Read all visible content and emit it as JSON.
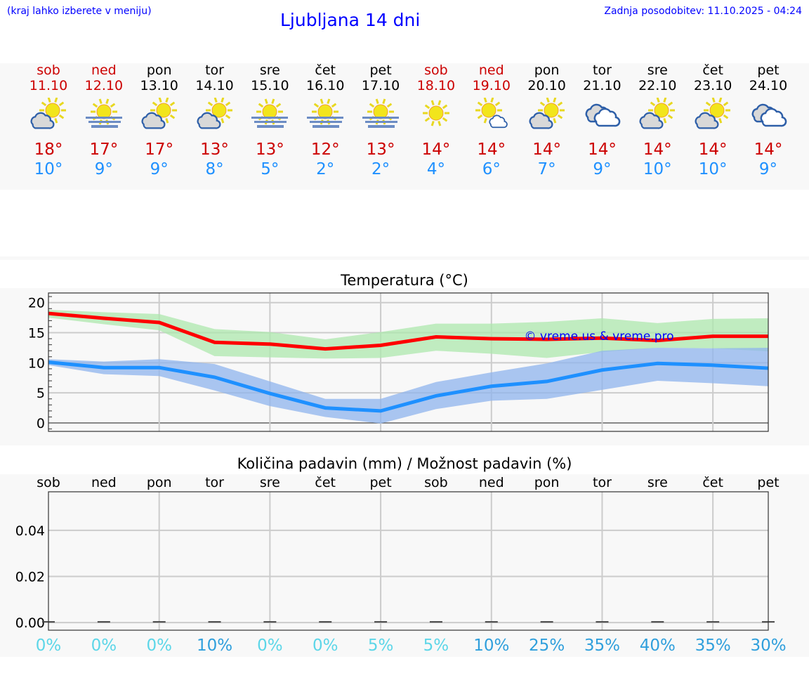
{
  "header": {
    "hint": "(kraj lahko izberete v meniju)",
    "title": "Ljubljana 14 dni",
    "updated": "Zadnja posodobitev: 11.10.2025 - 04:24"
  },
  "days": [
    {
      "name": "sob",
      "date": "11.10",
      "weekend": true,
      "icon": "sun-cloud-icon",
      "max": "18°",
      "min": "10°"
    },
    {
      "name": "ned",
      "date": "12.10",
      "weekend": true,
      "icon": "sun-fog-icon",
      "max": "17°",
      "min": "9°"
    },
    {
      "name": "pon",
      "date": "13.10",
      "weekend": false,
      "icon": "sun-cloud-icon",
      "max": "17°",
      "min": "9°"
    },
    {
      "name": "tor",
      "date": "14.10",
      "weekend": false,
      "icon": "sun-cloud-icon",
      "max": "13°",
      "min": "8°"
    },
    {
      "name": "sre",
      "date": "15.10",
      "weekend": false,
      "icon": "sun-fog-icon",
      "max": "13°",
      "min": "5°"
    },
    {
      "name": "čet",
      "date": "16.10",
      "weekend": false,
      "icon": "sun-fog-icon",
      "max": "12°",
      "min": "2°"
    },
    {
      "name": "pet",
      "date": "17.10",
      "weekend": false,
      "icon": "sun-fog-icon",
      "max": "13°",
      "min": "2°"
    },
    {
      "name": "sob",
      "date": "18.10",
      "weekend": true,
      "icon": "sun-icon",
      "max": "14°",
      "min": "4°"
    },
    {
      "name": "ned",
      "date": "19.10",
      "weekend": true,
      "icon": "sun-small-cloud-icon",
      "max": "14°",
      "min": "6°"
    },
    {
      "name": "pon",
      "date": "20.10",
      "weekend": false,
      "icon": "sun-cloud-icon",
      "max": "14°",
      "min": "7°"
    },
    {
      "name": "tor",
      "date": "21.10",
      "weekend": false,
      "icon": "cloudy-icon",
      "max": "14°",
      "min": "9°"
    },
    {
      "name": "sre",
      "date": "22.10",
      "weekend": false,
      "icon": "sun-cloud-icon",
      "max": "14°",
      "min": "10°"
    },
    {
      "name": "čet",
      "date": "23.10",
      "weekend": false,
      "icon": "sun-cloud-icon",
      "max": "14°",
      "min": "10°"
    },
    {
      "name": "pet",
      "date": "24.10",
      "weekend": false,
      "icon": "cloudy-icon",
      "max": "14°",
      "min": "9°"
    }
  ],
  "colors": {
    "max": "#ff0000",
    "min": "#1e90ff",
    "max_band": "#aee8ae",
    "min_band": "#aec8f2",
    "weekend": "#cc0000",
    "low_prob": "#5cd6e8",
    "high_prob": "#2f9fdc"
  },
  "chart_data": [
    {
      "type": "line",
      "title": "Temperatura (°C)",
      "ylim": [
        -1.4,
        21.6
      ],
      "yticks": [
        "0",
        "5",
        "10",
        "15",
        "20"
      ],
      "grid": true,
      "watermark": "© vreme.us & vreme.pro",
      "x": [
        "11.10",
        "12.10",
        "13.10",
        "14.10",
        "15.10",
        "16.10",
        "17.10",
        "18.10",
        "19.10",
        "20.10",
        "21.10",
        "22.10",
        "23.10",
        "24.10"
      ],
      "series": [
        {
          "role": "max",
          "values": [
            18.2,
            17.4,
            16.7,
            13.4,
            13.1,
            12.3,
            12.9,
            14.3,
            14.0,
            13.9,
            14.1,
            13.7,
            14.4,
            14.4
          ],
          "band_upper": [
            18.8,
            18.4,
            18.1,
            15.6,
            15.1,
            13.9,
            15.1,
            16.5,
            16.5,
            16.8,
            17.4,
            16.6,
            17.3,
            17.4
          ],
          "band_lower": [
            17.5,
            16.4,
            15.4,
            11.1,
            10.9,
            10.7,
            10.8,
            12.0,
            11.5,
            10.8,
            11.8,
            12.5,
            12.4,
            11.9
          ]
        },
        {
          "role": "min",
          "values": [
            10.1,
            9.2,
            9.2,
            7.6,
            4.9,
            2.5,
            2.0,
            4.5,
            6.1,
            6.9,
            8.8,
            9.9,
            9.6,
            9.1
          ],
          "band_upper": [
            10.6,
            10.2,
            10.6,
            9.8,
            6.9,
            4.0,
            4.0,
            6.8,
            8.4,
            9.9,
            12.0,
            12.5,
            12.4,
            12.5
          ],
          "band_lower": [
            9.6,
            8.1,
            7.8,
            5.4,
            2.8,
            1.0,
            -0.1,
            2.3,
            3.7,
            4.0,
            5.5,
            7.0,
            6.6,
            6.1
          ]
        }
      ]
    },
    {
      "type": "bar",
      "title": "Količina padavin (mm) / Možnost padavin (%)",
      "ylim": [
        -0.0033,
        0.0567
      ],
      "yticks": [
        "0.00",
        "0.02",
        "0.04"
      ],
      "grid": true,
      "categories": [
        "sob",
        "ned",
        "pon",
        "tor",
        "sre",
        "čet",
        "pet",
        "sob",
        "ned",
        "pon",
        "tor",
        "sre",
        "čet",
        "pet"
      ],
      "values": [
        0,
        0,
        0,
        0,
        0,
        0,
        0,
        0,
        0,
        0,
        0,
        0,
        0,
        0
      ],
      "probability": [
        "0%",
        "0%",
        "0%",
        "10%",
        "0%",
        "0%",
        "5%",
        "5%",
        "10%",
        "25%",
        "35%",
        "40%",
        "35%",
        "30%"
      ]
    }
  ]
}
